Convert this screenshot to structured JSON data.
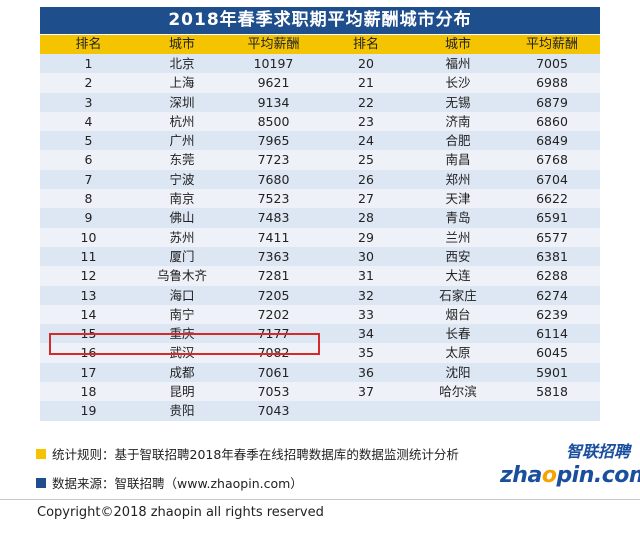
{
  "title": "2018年春季求职期平均薪酬城市分布",
  "headers": [
    "排名",
    "城市",
    "平均薪酬",
    "排名",
    "城市",
    "平均薪酬"
  ],
  "rows": [
    [
      "1",
      "北京",
      "10197",
      "20",
      "福州",
      "7005"
    ],
    [
      "2",
      "上海",
      "9621",
      "21",
      "长沙",
      "6988"
    ],
    [
      "3",
      "深圳",
      "9134",
      "22",
      "无锡",
      "6879"
    ],
    [
      "4",
      "杭州",
      "8500",
      "23",
      "济南",
      "6860"
    ],
    [
      "5",
      "广州",
      "7965",
      "24",
      "合肥",
      "6849"
    ],
    [
      "6",
      "东莞",
      "7723",
      "25",
      "南昌",
      "6768"
    ],
    [
      "7",
      "宁波",
      "7680",
      "26",
      "郑州",
      "6704"
    ],
    [
      "8",
      "南京",
      "7523",
      "27",
      "天津",
      "6622"
    ],
    [
      "9",
      "佛山",
      "7483",
      "28",
      "青岛",
      "6591"
    ],
    [
      "10",
      "苏州",
      "7411",
      "29",
      "兰州",
      "6577"
    ],
    [
      "11",
      "厦门",
      "7363",
      "30",
      "西安",
      "6381"
    ],
    [
      "12",
      "乌鲁木齐",
      "7281",
      "31",
      "大连",
      "6288"
    ],
    [
      "13",
      "海口",
      "7205",
      "32",
      "石家庄",
      "6274"
    ],
    [
      "14",
      "南宁",
      "7202",
      "33",
      "烟台",
      "6239"
    ],
    [
      "15",
      "重庆",
      "7177",
      "34",
      "长春",
      "6114"
    ],
    [
      "16",
      "武汉",
      "7082",
      "35",
      "太原",
      "6045"
    ],
    [
      "17",
      "成都",
      "7061",
      "36",
      "沈阳",
      "5901"
    ],
    [
      "18",
      "昆明",
      "7053",
      "37",
      "哈尔滨",
      "5818"
    ],
    [
      "19",
      "贵阳",
      "7043",
      "",
      "",
      " "
    ]
  ],
  "highlight_rank": "15",
  "footnotes": [
    {
      "text": "统计规则：基于智联招聘2018年春季在线招聘数据库的数据监测统计分析",
      "color": "#f5c400"
    },
    {
      "text": "数据来源：智联招聘（www.zhaopin.com）",
      "color": "#1f4e8c"
    }
  ],
  "logo": {
    "cn": "智联招聘",
    "en_pre": "zha",
    "en_o": "o",
    "en_post": "pin.com"
  },
  "copyright": "Copyright©2018 zhaopin all rights reserved",
  "colors": {
    "title_bg": "#1f4e8c",
    "header_bg": "#f5c400",
    "row_odd": "#dde6f3",
    "row_even": "#eef2f8",
    "highlight": "#d42a2a"
  }
}
